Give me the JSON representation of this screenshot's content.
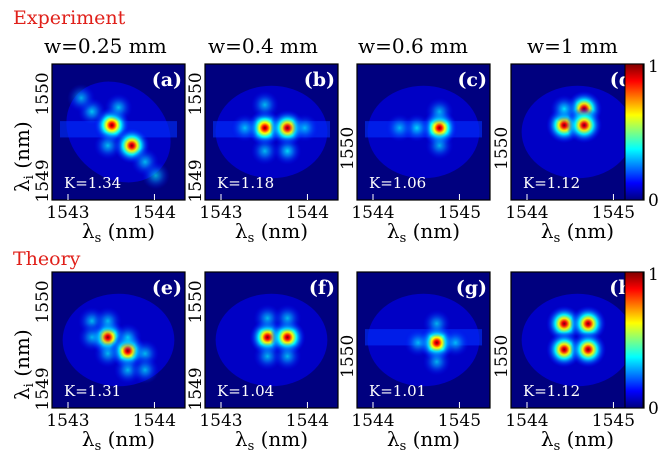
{
  "figure": {
    "row_labels": [
      "Experiment",
      "Theory"
    ],
    "column_titles": [
      "w=0.25 mm",
      "w=0.4 mm",
      "w=0.6 mm",
      "w=1 mm"
    ],
    "xlabel": "λs (nm)",
    "ylabel": "λi (nm)",
    "colormap": "jet",
    "colorbar_ticks": [
      "0",
      "1"
    ],
    "colors": {
      "section_label": "#e0201a",
      "colormap_low": "#00007f",
      "colormap_high": "#7f0000"
    }
  },
  "chart_data": [
    {
      "type": "heatmap",
      "id": "a",
      "tag": "(a)",
      "K": "K=1.34",
      "row": "Experiment",
      "column": "w=0.25 mm",
      "xticks": [
        "1543",
        "1544"
      ],
      "yticks": [
        "1550",
        "1549"
      ],
      "peaks": [
        [
          0.45,
          0.45,
          1.0
        ],
        [
          0.6,
          0.6,
          0.9
        ],
        [
          0.3,
          0.35,
          0.55
        ],
        [
          0.5,
          0.32,
          0.5
        ],
        [
          0.42,
          0.6,
          0.5
        ],
        [
          0.7,
          0.72,
          0.45
        ],
        [
          0.22,
          0.25,
          0.35
        ],
        [
          0.78,
          0.82,
          0.3
        ]
      ],
      "spread": "diagonal"
    },
    {
      "type": "heatmap",
      "id": "b",
      "tag": "(b)",
      "K": "K=1.18",
      "row": "Experiment",
      "column": "w=0.4 mm",
      "xticks": [
        "1543",
        "1544"
      ],
      "yticks": [
        "1550",
        "1549"
      ],
      "peaks": [
        [
          0.45,
          0.47,
          1.0
        ],
        [
          0.62,
          0.47,
          0.85
        ],
        [
          0.62,
          0.64,
          0.7
        ],
        [
          0.45,
          0.3,
          0.45
        ],
        [
          0.3,
          0.47,
          0.45
        ],
        [
          0.75,
          0.47,
          0.4
        ],
        [
          0.45,
          0.64,
          0.45
        ]
      ],
      "spread": "rows"
    },
    {
      "type": "heatmap",
      "id": "c",
      "tag": "(c)",
      "K": "K=1.06",
      "row": "Experiment",
      "column": "w=0.6 mm",
      "xticks": [
        "1544",
        "1545"
      ],
      "yticks": [
        "1550"
      ],
      "peaks": [
        [
          0.62,
          0.47,
          1.0
        ],
        [
          0.45,
          0.47,
          0.65
        ],
        [
          0.62,
          0.35,
          0.4
        ],
        [
          0.62,
          0.6,
          0.4
        ],
        [
          0.32,
          0.47,
          0.35
        ]
      ],
      "spread": "cross"
    },
    {
      "type": "heatmap",
      "id": "d",
      "tag": "(d)",
      "K": "K=1.12",
      "row": "Experiment",
      "column": "w=1 mm",
      "xticks": [
        "1544",
        "1545"
      ],
      "yticks": [
        "1550"
      ],
      "peaks": [
        [
          0.4,
          0.45,
          0.9
        ],
        [
          0.55,
          0.33,
          0.85
        ],
        [
          0.4,
          0.33,
          0.8
        ],
        [
          0.55,
          0.45,
          0.85
        ]
      ],
      "spread": "square"
    },
    {
      "type": "heatmap",
      "id": "e",
      "tag": "(e)",
      "K": "K=1.31",
      "row": "Theory",
      "column": "w=0.25 mm",
      "xticks": [
        "1543",
        "1544"
      ],
      "yticks": [
        "1550",
        "1549"
      ],
      "peaks": [
        [
          0.42,
          0.48,
          0.95
        ],
        [
          0.57,
          0.58,
          0.95
        ],
        [
          0.3,
          0.36,
          0.45
        ],
        [
          0.42,
          0.36,
          0.45
        ],
        [
          0.57,
          0.48,
          0.5
        ],
        [
          0.42,
          0.6,
          0.45
        ],
        [
          0.7,
          0.6,
          0.45
        ],
        [
          0.57,
          0.72,
          0.45
        ],
        [
          0.7,
          0.72,
          0.4
        ],
        [
          0.3,
          0.48,
          0.4
        ]
      ],
      "spread": "lattice"
    },
    {
      "type": "heatmap",
      "id": "f",
      "tag": "(f)",
      "K": "K=1.04",
      "row": "Theory",
      "column": "w=0.4 mm",
      "xticks": [
        "1543",
        "1544"
      ],
      "yticks": [
        "1550",
        "1549"
      ],
      "peaks": [
        [
          0.47,
          0.48,
          0.95
        ],
        [
          0.62,
          0.48,
          0.95
        ],
        [
          0.47,
          0.34,
          0.45
        ],
        [
          0.62,
          0.34,
          0.45
        ],
        [
          0.47,
          0.62,
          0.45
        ],
        [
          0.62,
          0.62,
          0.45
        ]
      ],
      "spread": "lattice"
    },
    {
      "type": "heatmap",
      "id": "g",
      "tag": "(g)",
      "K": "K=1.01",
      "row": "Theory",
      "column": "w=0.6 mm",
      "xticks": [
        "1544",
        "1545"
      ],
      "yticks": [
        "1550"
      ],
      "peaks": [
        [
          0.6,
          0.52,
          1.0
        ],
        [
          0.6,
          0.38,
          0.4
        ],
        [
          0.6,
          0.66,
          0.4
        ],
        [
          0.46,
          0.52,
          0.4
        ],
        [
          0.74,
          0.52,
          0.4
        ]
      ],
      "spread": "cross"
    },
    {
      "type": "heatmap",
      "id": "h",
      "tag": "(h)",
      "K": "K=1.12",
      "row": "Theory",
      "column": "w=1 mm",
      "xticks": [
        "1544",
        "1545"
      ],
      "yticks": [
        "1550"
      ],
      "peaks": [
        [
          0.4,
          0.38,
          0.9
        ],
        [
          0.58,
          0.38,
          0.9
        ],
        [
          0.4,
          0.57,
          0.9
        ],
        [
          0.58,
          0.57,
          0.9
        ]
      ],
      "spread": "square"
    }
  ]
}
